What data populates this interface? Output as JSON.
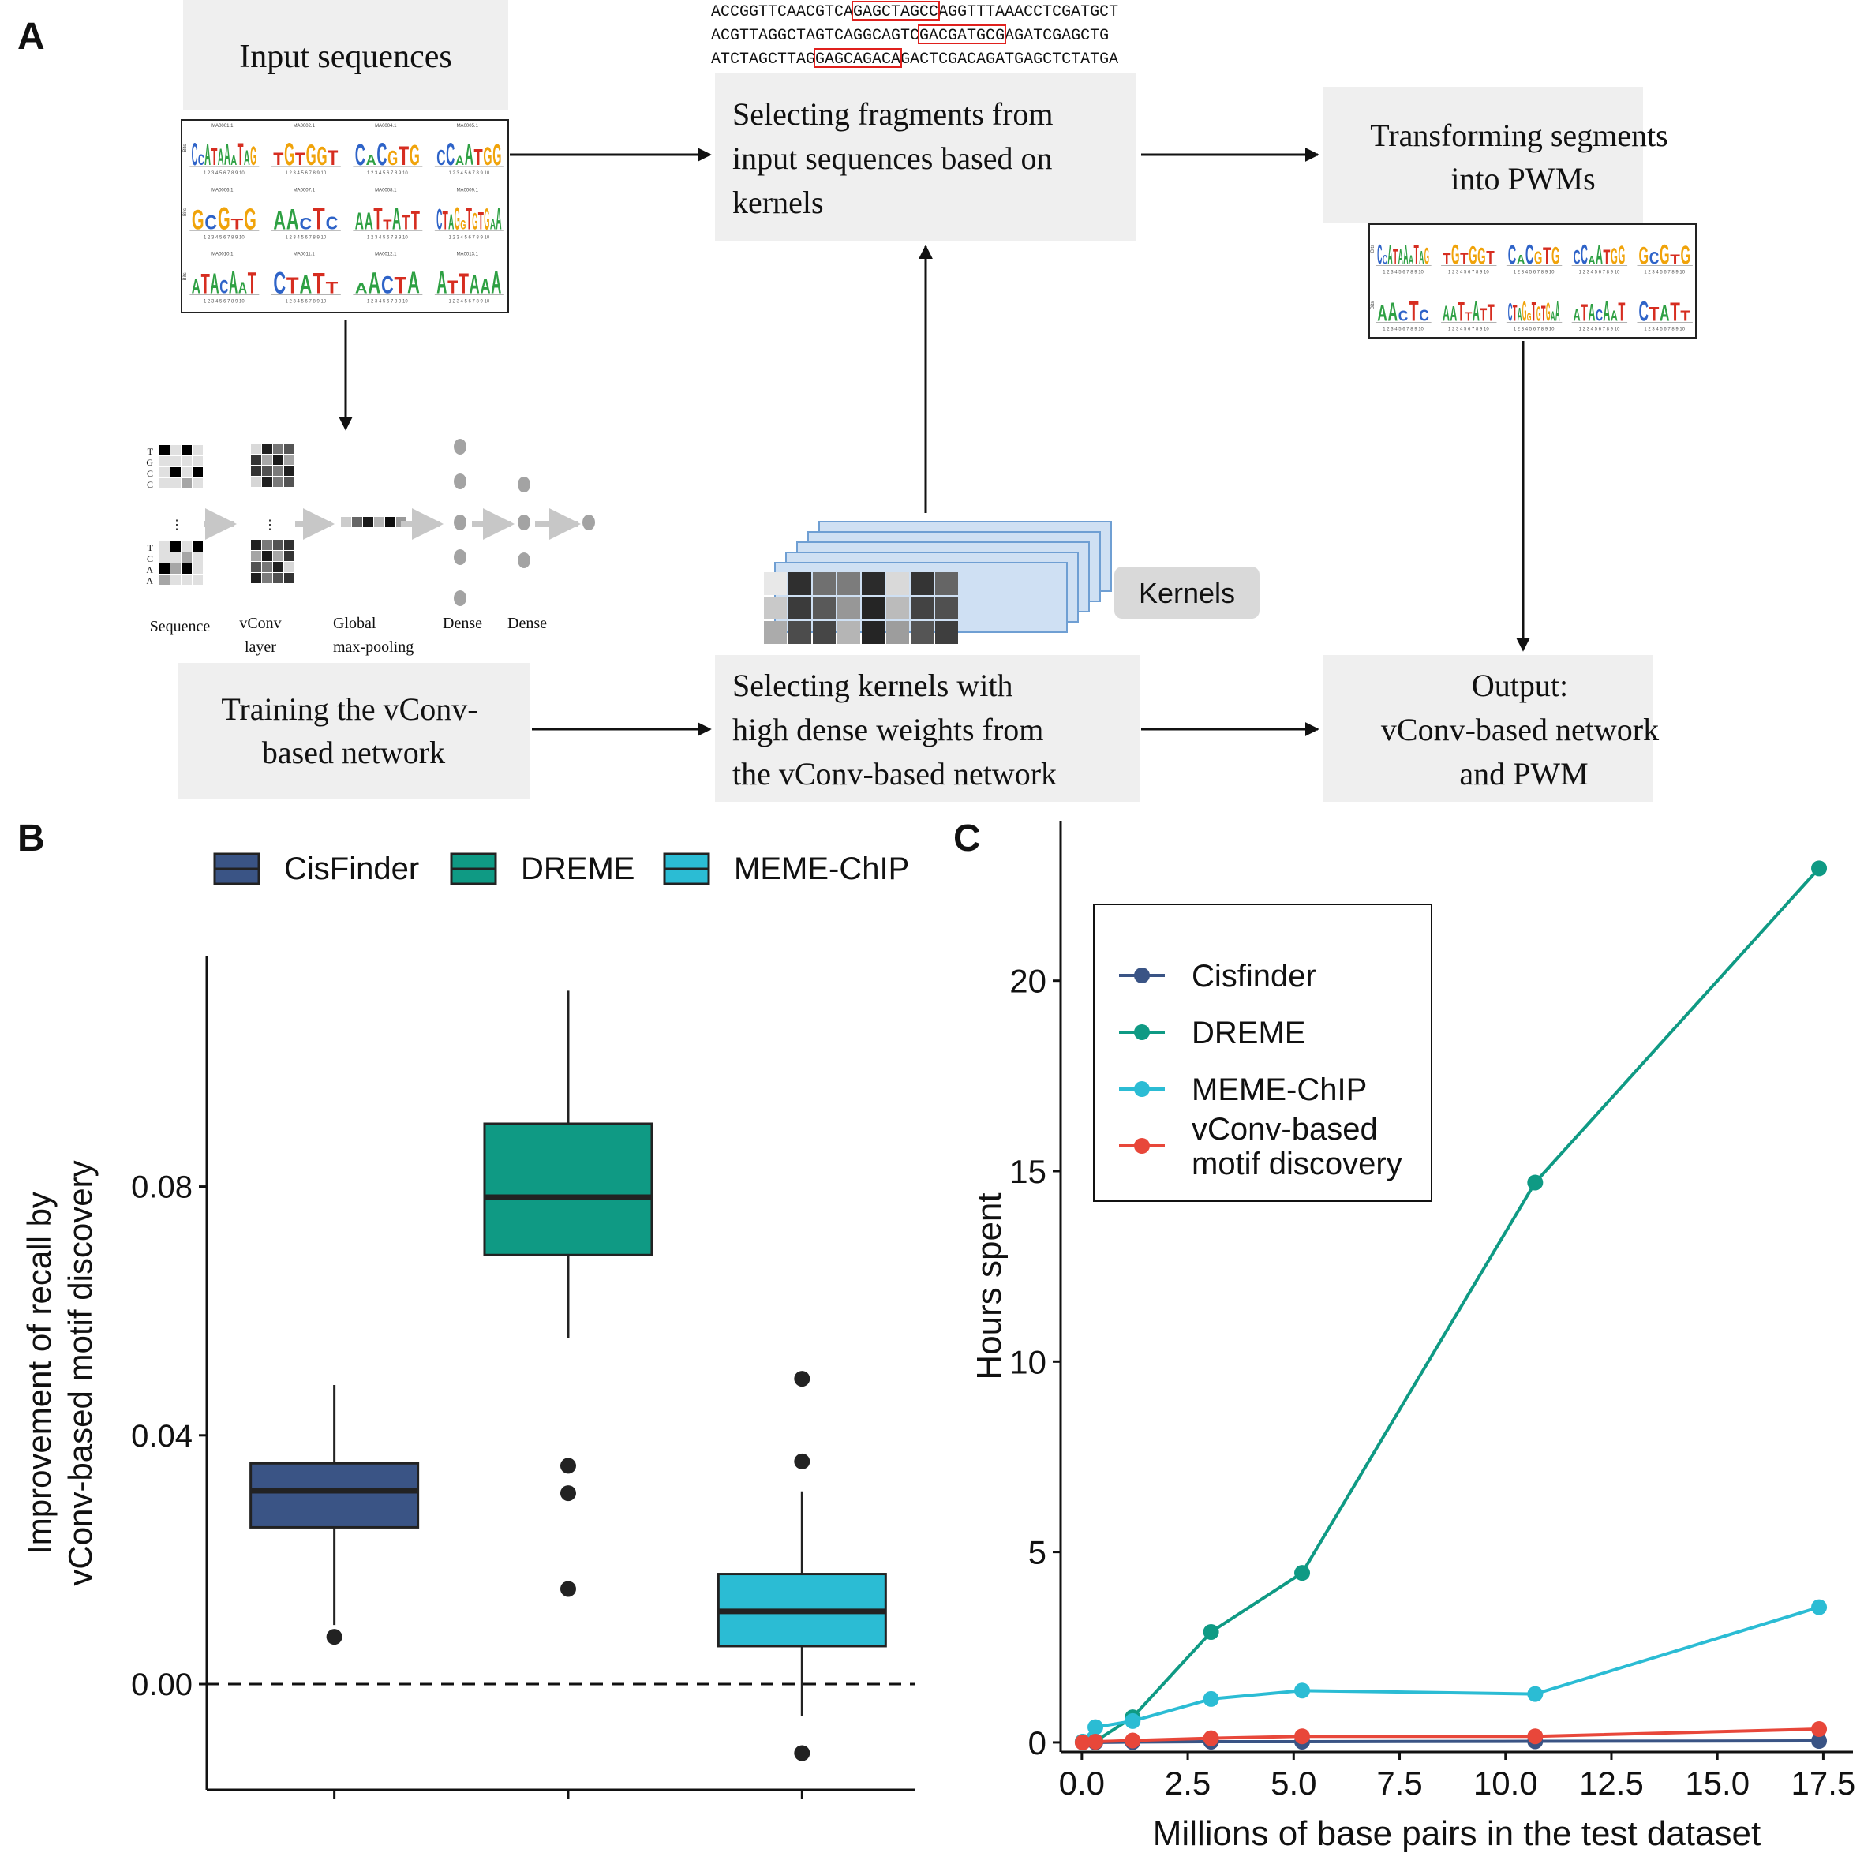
{
  "panels": {
    "a": {
      "label": "A",
      "boxes": {
        "input": "Input sequences",
        "selecting_fragments": [
          "Selecting fragments from",
          "input sequences based on",
          "kernels"
        ],
        "transforming": [
          "Transforming segments",
          "into PWMs"
        ],
        "training": [
          "Training the vConv-",
          "based network"
        ],
        "selecting_kernels": [
          "Selecting kernels with",
          "high dense weights from",
          "the vConv-based network"
        ],
        "output": [
          "Output:",
          "vConv-based network",
          "and PWM"
        ]
      },
      "kernels_label": "Kernels",
      "sequence_lines": [
        {
          "pre": "ACCGGTTCAACGTCA",
          "box": "GAGCTAGCC",
          "post": "AGGTTTAAACCTCGATGCT"
        },
        {
          "pre": "ACGTTAGGCTAGTCAGGCAGTC",
          "box": "GACGATGCG",
          "post": "AGATCGAGCTG"
        },
        {
          "pre": "ATCTAGCTTAG",
          "box": "GAGCAGACA",
          "post": "GACTCGACAGATGAGCTCTATGA"
        }
      ],
      "network_labels": {
        "sequence": "Sequence",
        "vconv": [
          "vConv",
          "layer"
        ],
        "pooling": [
          "Global",
          "max-pooling"
        ],
        "dense1": "Dense",
        "dense2": "Dense"
      },
      "onehot_top": [
        "T",
        "G",
        "C",
        "C"
      ],
      "onehot_bottom": [
        "T",
        "C",
        "A",
        "A"
      ],
      "logo_captions": [
        "MA0001.1",
        "MA0002.1",
        "MA0004.1",
        "MA0005.1",
        "MA0006.1",
        "MA0007.1",
        "MA0008.1",
        "MA0009.1",
        "MA0010.1",
        "MA0011.1",
        "MA0012.1",
        "MA0013.1"
      ],
      "logo_motifs": [
        "CCATAAATAG",
        "TGTGGT",
        "CACGTG",
        "CC AAT GG",
        "GCGTG",
        "AACTC",
        "AATTATT",
        "CTAGGTGTGAA",
        "ATACAAT",
        "CTA TT",
        "AACTA",
        "ATTAAA"
      ],
      "logo_axis": "Bits"
    },
    "b": {
      "label": "B",
      "chart_data": {
        "type": "box",
        "title": "",
        "ylabel": [
          "Improvement of recall by",
          "vConv-based motif discovery"
        ],
        "xlabel": "",
        "ylim": [
          -0.017,
          0.117
        ],
        "yticks": [
          "0.00",
          "0.04",
          "0.08"
        ],
        "yticks_values": [
          0,
          0.04,
          0.08
        ],
        "reference_line": 0,
        "legend_position": "top",
        "series": [
          {
            "name": "CisFinder",
            "color": "#3a5485",
            "q1": 0.0252,
            "median": 0.0311,
            "q3": 0.0355,
            "whisker_low": 0.0095,
            "whisker_high": 0.0481,
            "outliers": [
              0.0076
            ]
          },
          {
            "name": "DREME",
            "color": "#0f9a84",
            "q1": 0.069,
            "median": 0.0783,
            "q3": 0.0901,
            "whisker_low": 0.0557,
            "whisker_high": 0.1115,
            "outliers": [
              0.0351,
              0.0307,
              0.0153
            ]
          },
          {
            "name": "MEME-ChIP",
            "color": "#2bbcd4",
            "q1": 0.0061,
            "median": 0.0117,
            "q3": 0.0177,
            "whisker_low": -0.0052,
            "whisker_high": 0.031,
            "outliers": [
              0.0491,
              0.0358,
              -0.0111
            ]
          }
        ]
      }
    },
    "c": {
      "label": "C",
      "chart_data": {
        "type": "line",
        "title": "",
        "xlabel": "Millions of base pairs in the test dataset",
        "ylabel": "Hours spent",
        "xlim": [
          -0.5,
          18.2
        ],
        "ylim": [
          -0.25,
          24.2
        ],
        "xticks": [
          "0.0",
          "2.5",
          "5.0",
          "7.5",
          "10.0",
          "12.5",
          "15.0",
          "17.5"
        ],
        "xticks_values": [
          0,
          2.5,
          5,
          7.5,
          10,
          12.5,
          15,
          17.5
        ],
        "yticks": [
          "0",
          "5",
          "10",
          "15",
          "20"
        ],
        "yticks_values": [
          0,
          5,
          10,
          15,
          20
        ],
        "legend_position": "top-left inside",
        "series": [
          {
            "name": "Cisfinder",
            "color": "#3a5485",
            "x": [
              0.02,
              0.32,
              1.2,
              3.05,
              5.2,
              10.7,
              17.4
            ],
            "y": [
              0.0,
              0.0,
              0.01,
              0.02,
              0.02,
              0.03,
              0.04
            ]
          },
          {
            "name": "DREME",
            "color": "#0f9a84",
            "x": [
              0.02,
              0.32,
              1.2,
              3.05,
              5.2,
              10.7,
              17.4
            ],
            "y": [
              0.02,
              0.03,
              0.66,
              2.9,
              4.45,
              14.7,
              22.95
            ]
          },
          {
            "name": "MEME-ChIP",
            "color": "#2bbcd4",
            "x": [
              0.02,
              0.32,
              1.2,
              3.05,
              5.2,
              10.7,
              17.4
            ],
            "y": [
              0.02,
              0.4,
              0.56,
              1.14,
              1.36,
              1.27,
              3.55
            ]
          },
          {
            "name": "vConv-based\nmotif discovery",
            "color": "#e8473a",
            "x": [
              0.02,
              0.32,
              1.2,
              3.05,
              5.2,
              10.7,
              17.4
            ],
            "y": [
              0.0,
              0.02,
              0.05,
              0.11,
              0.16,
              0.16,
              0.35
            ]
          }
        ]
      }
    }
  }
}
